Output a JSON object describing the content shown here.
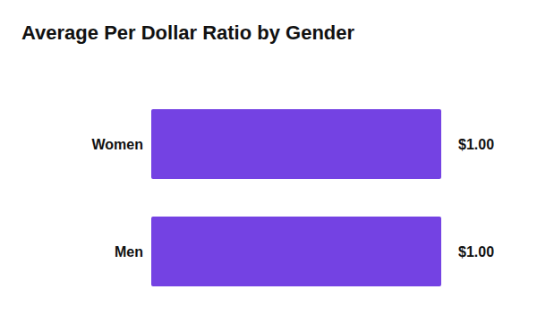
{
  "chart_data": {
    "type": "bar",
    "title": "Average Per Dollar Ratio by Gender",
    "orientation": "horizontal",
    "categories": [
      "Women",
      "Men"
    ],
    "values": [
      1.0,
      1.0
    ],
    "value_labels": [
      "$1.00",
      "$1.00"
    ],
    "color": "#7442e3",
    "xlim": [
      0,
      1
    ],
    "data_labels": true,
    "tick_labels": false,
    "grid": false
  }
}
